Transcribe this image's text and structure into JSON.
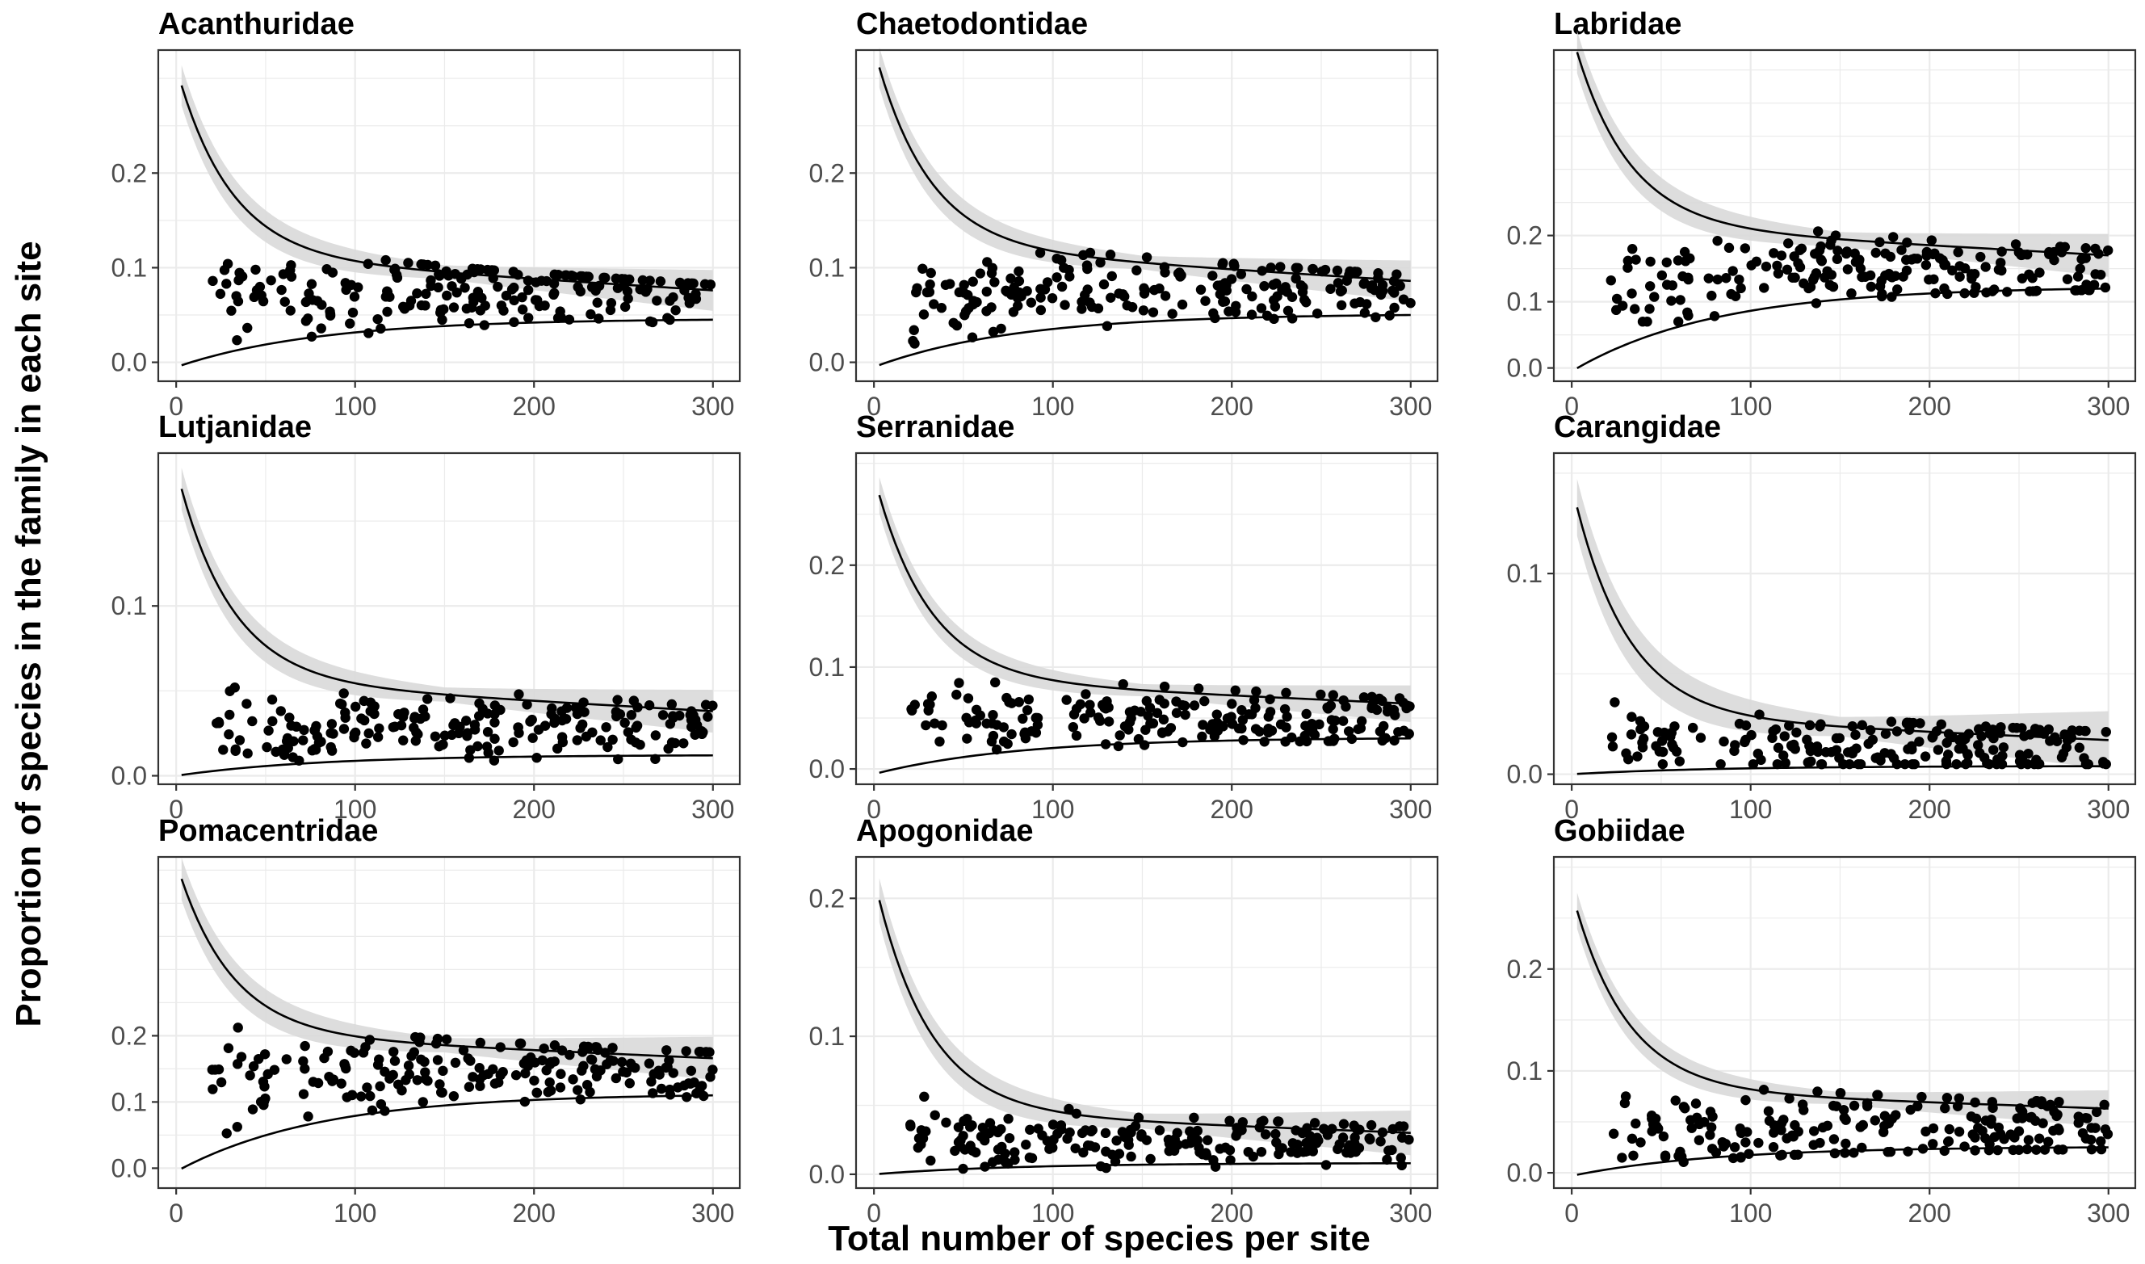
{
  "figure": {
    "xlabel": "Total number of species per site",
    "ylabel": "Proportion of species in the family in each site"
  },
  "chart_data": [
    {
      "type": "scatter",
      "title": "Acanthuridae",
      "xlim": [
        -10,
        315
      ],
      "ylim": [
        -0.02,
        0.33
      ],
      "xticks": [
        0,
        100,
        200,
        300
      ],
      "yticks": [
        0.0,
        0.1,
        0.2
      ],
      "upper_curve": {
        "start": 0.3,
        "plateau": 0.1,
        "slope": -0.00012
      },
      "lower_curve": {
        "start": -0.005,
        "end": 0.045
      },
      "band_width": 0.012,
      "point_cloud": {
        "center": 0.075,
        "spread": 0.025,
        "min": 0.01,
        "max": 0.165,
        "count": 200,
        "seed": 1
      }
    },
    {
      "type": "scatter",
      "title": "Chaetodontidae",
      "xlim": [
        -10,
        315
      ],
      "ylim": [
        -0.02,
        0.33
      ],
      "xticks": [
        0,
        100,
        200,
        300
      ],
      "yticks": [
        0.0,
        0.1,
        0.2
      ],
      "upper_curve": {
        "start": 0.32,
        "plateau": 0.11,
        "slope": -0.00012
      },
      "lower_curve": {
        "start": -0.005,
        "end": 0.05
      },
      "band_width": 0.012,
      "point_cloud": {
        "center": 0.078,
        "spread": 0.022,
        "min": 0.015,
        "max": 0.21,
        "count": 200,
        "seed": 2
      }
    },
    {
      "type": "scatter",
      "title": "Labridae",
      "xlim": [
        -10,
        315
      ],
      "ylim": [
        -0.02,
        0.48
      ],
      "xticks": [
        0,
        100,
        200,
        300
      ],
      "yticks": [
        0.0,
        0.1,
        0.2
      ],
      "upper_curve": {
        "start": 0.49,
        "plateau": 0.2,
        "slope": -0.00015
      },
      "lower_curve": {
        "start": -0.005,
        "end": 0.12
      },
      "band_width": 0.018,
      "point_cloud": {
        "center": 0.15,
        "spread": 0.035,
        "min": 0.07,
        "max": 0.3,
        "count": 200,
        "seed": 3
      }
    },
    {
      "type": "scatter",
      "title": "Lutjanidae",
      "xlim": [
        -10,
        315
      ],
      "ylim": [
        -0.005,
        0.19
      ],
      "xticks": [
        0,
        100,
        200,
        300
      ],
      "yticks": [
        0.0,
        0.1
      ],
      "upper_curve": {
        "start": 0.175,
        "plateau": 0.05,
        "slope": -6e-05
      },
      "lower_curve": {
        "start": 0.0,
        "end": 0.012
      },
      "band_width": 0.007,
      "point_cloud": {
        "center": 0.03,
        "spread": 0.013,
        "min": 0.005,
        "max": 0.102,
        "count": 200,
        "seed": 4
      }
    },
    {
      "type": "scatter",
      "title": "Serranidae",
      "xlim": [
        -10,
        315
      ],
      "ylim": [
        -0.015,
        0.31
      ],
      "xticks": [
        0,
        100,
        200,
        300
      ],
      "yticks": [
        0.0,
        0.1,
        0.2
      ],
      "upper_curve": {
        "start": 0.28,
        "plateau": 0.08,
        "slope": -8e-05
      },
      "lower_curve": {
        "start": -0.005,
        "end": 0.03
      },
      "band_width": 0.01,
      "point_cloud": {
        "center": 0.05,
        "spread": 0.02,
        "min": 0.01,
        "max": 0.25,
        "count": 200,
        "seed": 5
      }
    },
    {
      "type": "scatter",
      "title": "Carangidae",
      "xlim": [
        -10,
        315
      ],
      "ylim": [
        -0.005,
        0.16
      ],
      "xticks": [
        0,
        100,
        200,
        300
      ],
      "yticks": [
        0.0,
        0.1
      ],
      "upper_curve": {
        "start": 0.14,
        "plateau": 0.025,
        "slope": -4e-05
      },
      "lower_curve": {
        "start": 0.0,
        "end": 0.004
      },
      "band_width": 0.008,
      "point_cloud": {
        "center": 0.015,
        "spread": 0.01,
        "min": 0.005,
        "max": 0.087,
        "count": 200,
        "seed": 6
      }
    },
    {
      "type": "scatter",
      "title": "Pomacentridae",
      "xlim": [
        -10,
        315
      ],
      "ylim": [
        -0.03,
        0.47
      ],
      "xticks": [
        0,
        100,
        200,
        300
      ],
      "yticks": [
        0.0,
        0.1,
        0.2
      ],
      "upper_curve": {
        "start": 0.45,
        "plateau": 0.19,
        "slope": -0.00012
      },
      "lower_curve": {
        "start": -0.005,
        "end": 0.11
      },
      "band_width": 0.018,
      "point_cloud": {
        "center": 0.15,
        "spread": 0.035,
        "min": 0.04,
        "max": 0.36,
        "count": 200,
        "seed": 7
      }
    },
    {
      "type": "scatter",
      "title": "Apogonidae",
      "xlim": [
        -10,
        315
      ],
      "ylim": [
        -0.01,
        0.23
      ],
      "xticks": [
        0,
        100,
        200,
        300
      ],
      "yticks": [
        0.0,
        0.1,
        0.2
      ],
      "upper_curve": {
        "start": 0.21,
        "plateau": 0.04,
        "slope": -5e-05
      },
      "lower_curve": {
        "start": 0.0,
        "end": 0.008
      },
      "band_width": 0.009,
      "point_cloud": {
        "center": 0.025,
        "spread": 0.012,
        "min": 0.004,
        "max": 0.08,
        "count": 200,
        "seed": 8
      }
    },
    {
      "type": "scatter",
      "title": "Gobiidae",
      "xlim": [
        -10,
        315
      ],
      "ylim": [
        -0.015,
        0.31
      ],
      "xticks": [
        0,
        100,
        200,
        300
      ],
      "yticks": [
        0.0,
        0.1,
        0.2
      ],
      "upper_curve": {
        "start": 0.27,
        "plateau": 0.075,
        "slope": -6e-05
      },
      "lower_curve": {
        "start": -0.003,
        "end": 0.025
      },
      "band_width": 0.01,
      "point_cloud": {
        "center": 0.045,
        "spread": 0.025,
        "min": 0.005,
        "max": 0.215,
        "count": 200,
        "seed": 9
      }
    }
  ]
}
